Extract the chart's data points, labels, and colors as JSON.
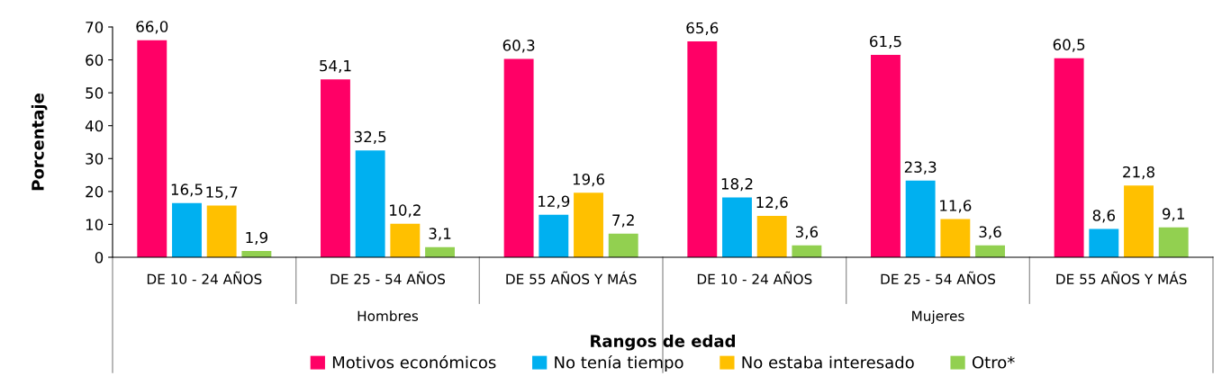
{
  "chart_data": {
    "type": "bar",
    "xlabel": "Rangos de edad",
    "ylabel": "Porcentaje",
    "categories": [
      "DE 10 - 24 AÑOS",
      "DE 25 - 54 AÑOS",
      "DE 55 AÑOS Y MÁS",
      "DE 10 - 24 AÑOS",
      "DE 25 - 54 AÑOS",
      "DE 55 AÑOS Y MÁS"
    ],
    "annotations": [
      "Hombres",
      "Mujeres"
    ],
    "series": [
      {
        "name": "Motivos económicos",
        "color": "#ff0066",
        "values": [
          66.0,
          54.1,
          60.3,
          65.6,
          61.5,
          60.5
        ],
        "value_labels": [
          "66,0",
          "54,1",
          "60,3",
          "65,6",
          "61,5",
          "60,5"
        ]
      },
      {
        "name": "No tenía tiempo",
        "color": "#00b0f0",
        "values": [
          16.5,
          32.5,
          12.9,
          18.2,
          23.3,
          8.6
        ],
        "value_labels": [
          "16,5",
          "32,5",
          "12,9",
          "18,2",
          "23,3",
          "8,6"
        ]
      },
      {
        "name": "No estaba interesado",
        "color": "#ffc000",
        "values": [
          15.7,
          10.2,
          19.6,
          12.6,
          11.6,
          21.8
        ],
        "value_labels": [
          "15,7",
          "10,2",
          "19,6",
          "12,6",
          "11,6",
          "21,8"
        ]
      },
      {
        "name": "Otro*",
        "color": "#92d050",
        "values": [
          1.9,
          3.1,
          7.2,
          3.6,
          3.6,
          9.1
        ],
        "value_labels": [
          "1,9",
          "3,1",
          "7,2",
          "3,6",
          "3,6",
          "9,1"
        ]
      }
    ],
    "ylim": [
      0,
      70
    ],
    "yticks": [
      0,
      10,
      20,
      30,
      40,
      50,
      60,
      70
    ],
    "grid": false,
    "legend": "bottom"
  }
}
